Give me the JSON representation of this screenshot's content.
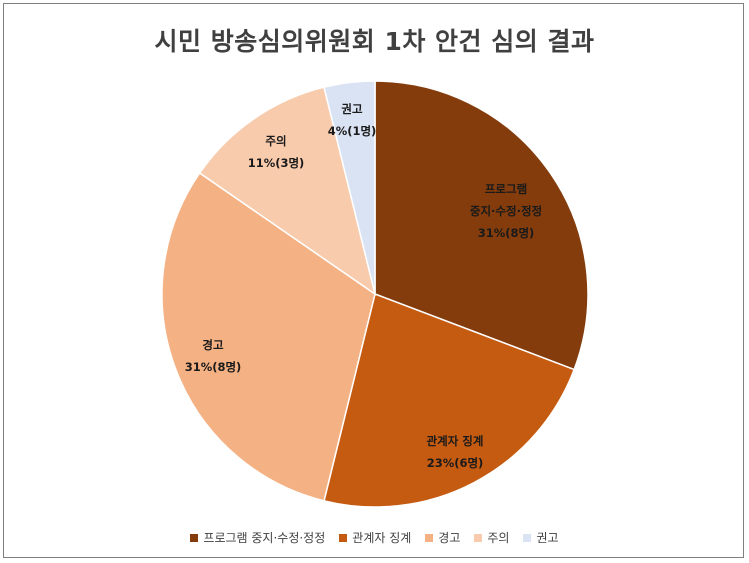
{
  "chart_data": {
    "type": "pie",
    "title": "시민 방송심의위원회 1차 안건 심의 결과",
    "slices": [
      {
        "name": "프로그램 중지·수정·정정",
        "label_lines": [
          "프로그램",
          "중지·수정·정정",
          "31%(8명)"
        ],
        "percent": 31,
        "count": 8,
        "color": "#843C0C"
      },
      {
        "name": "관계자 징계",
        "label_lines": [
          "관계자 징계",
          "23%(6명)"
        ],
        "percent": 23,
        "count": 6,
        "color": "#C55A11"
      },
      {
        "name": "경고",
        "label_lines": [
          "경고",
          "31%(8명)"
        ],
        "percent": 31,
        "count": 8,
        "color": "#F4B183"
      },
      {
        "name": "주의",
        "label_lines": [
          "주의",
          "11%(3명)"
        ],
        "percent": 11,
        "count": 3,
        "color": "#F8CBAD"
      },
      {
        "name": "권고",
        "label_lines": [
          "권고",
          "4%(1명)"
        ],
        "percent": 4,
        "count": 1,
        "color": "#DAE3F3"
      }
    ],
    "legend_position": "bottom"
  }
}
